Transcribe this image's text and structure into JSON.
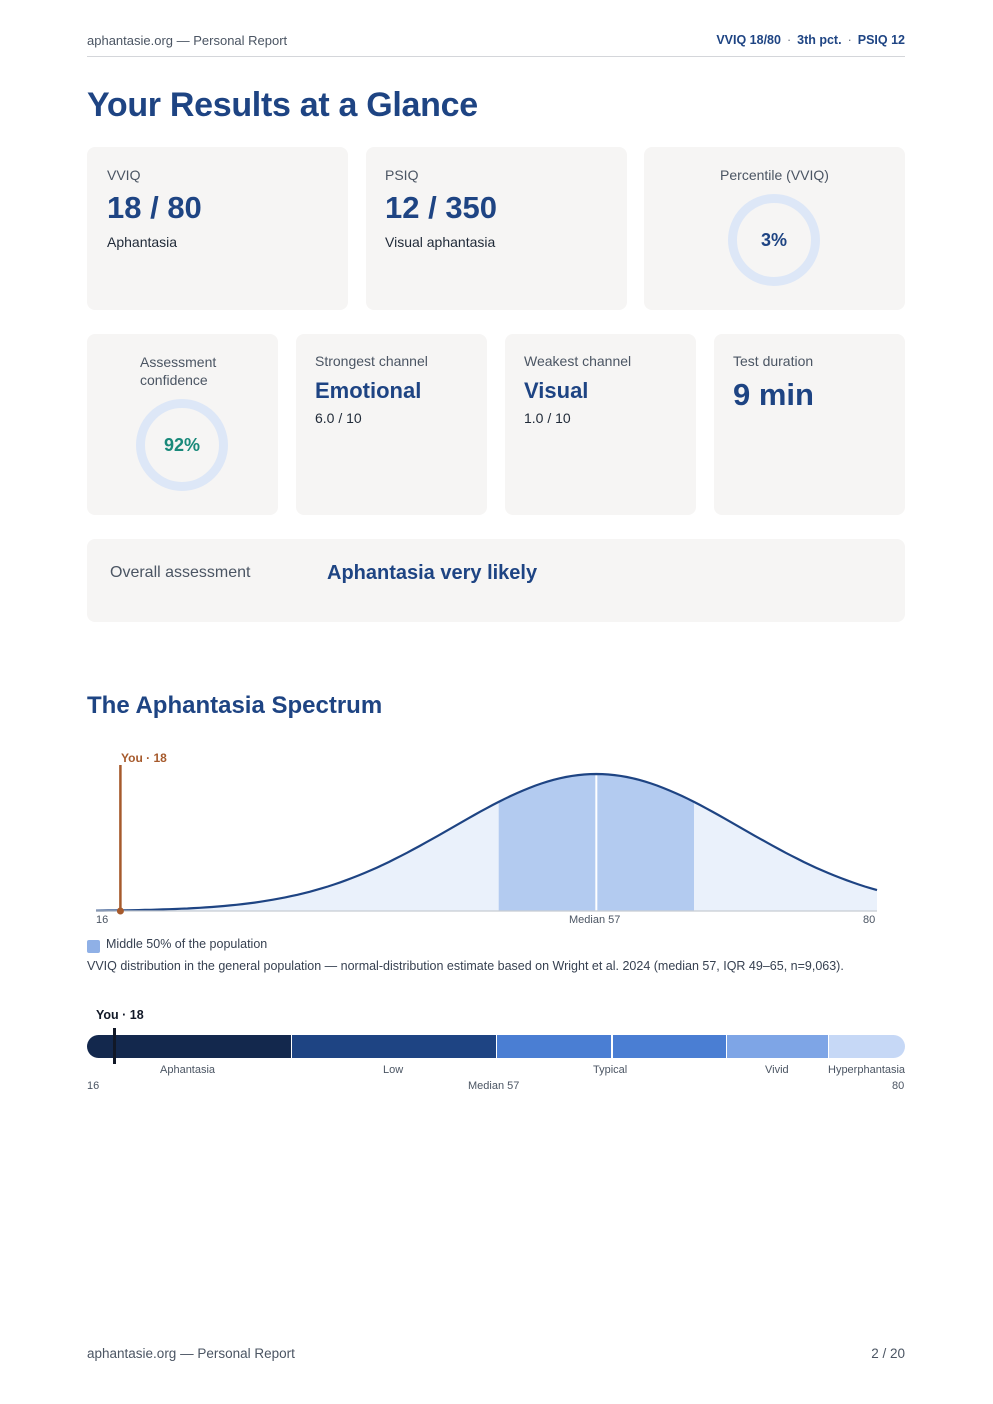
{
  "header": {
    "left": "aphantasie.org — Personal Report",
    "right_parts": [
      "VVIQ 18/80",
      "3th pct.",
      "PSIQ 12"
    ],
    "separator": "·"
  },
  "page_title": "Your Results at a Glance",
  "cards": {
    "vviq": {
      "label": "VVIQ",
      "value": "18 / 80",
      "sub": "Aphantasia"
    },
    "psiq": {
      "label": "PSIQ",
      "value": "12 / 350",
      "sub": "Visual aphantasia"
    },
    "percentile": {
      "label": "Percentile (VVIQ)",
      "value": "3%"
    },
    "confidence": {
      "label": "Assessment confidence",
      "value": "92%"
    },
    "strongest": {
      "label": "Strongest channel",
      "value": "Emotional",
      "sub": "6.0 / 10"
    },
    "weakest": {
      "label": "Weakest channel",
      "value": "Visual",
      "sub": "1.0 / 10"
    },
    "duration": {
      "label": "Test duration",
      "value": "9 min"
    },
    "overall": {
      "label": "Overall assessment",
      "value": "Aphantasia very likely"
    }
  },
  "colors": {
    "brand": "#1e4483",
    "you_marker": "#a65a2c",
    "confidence": "#19897a",
    "ring_track": "#dde7f7",
    "iqr_fill": "#b3cbf0",
    "curve_fill": "#eaf1fb"
  },
  "spectrum": {
    "title": "The Aphantasia Spectrum",
    "you_label": "You · 18",
    "axis": {
      "min_label": "16",
      "median_label": "Median 57",
      "max_label": "80"
    },
    "legend": "Middle 50% of the population",
    "caption": "VVIQ distribution in the general population — normal-distribution estimate based on Wright et al. 2024 (median 57, IQR 49–65, n=9,063).",
    "bar_you_label": "You · 18",
    "bands": [
      "Aphantasia",
      "Low",
      "Typical",
      "Vivid",
      "Hyperphantasia"
    ],
    "band_colors": [
      "#13284d",
      "#1e4483",
      "#4a7ed3",
      "#7ea5e6",
      "#c6d8f6"
    ],
    "bar_min": "16",
    "bar_median": "Median 57",
    "bar_max": "80"
  },
  "chart_data": {
    "type": "area",
    "title": "The Aphantasia Spectrum",
    "xlim": [
      16,
      80
    ],
    "distribution": "normal",
    "median": 57,
    "iqr": [
      49,
      65
    ],
    "n": 9063,
    "marker": {
      "label": "You · 18",
      "x": 18
    },
    "legend": [
      "Middle 50% of the population"
    ]
  },
  "footer": {
    "left": "aphantasie.org — Personal Report",
    "right": "2 / 20"
  }
}
